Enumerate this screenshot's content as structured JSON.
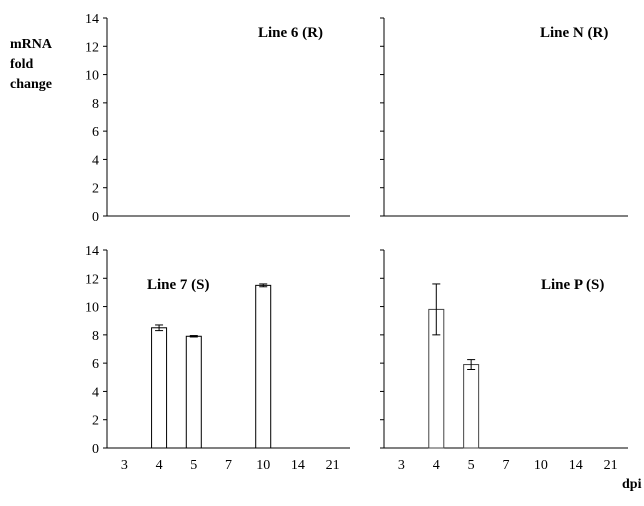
{
  "chart_data": {
    "type": "bar",
    "ylabel_lines": [
      "mRNA",
      "fold",
      "change"
    ],
    "xlabel": "dpi",
    "categories": [
      "3",
      "4",
      "5",
      "7",
      "10",
      "14",
      "21"
    ],
    "yticks": [
      "0",
      "2",
      "4",
      "6",
      "8",
      "10",
      "12",
      "14"
    ],
    "ylim": [
      0,
      14
    ],
    "grid": false,
    "panels": [
      {
        "title": "Line 6 (R)",
        "values": [
          null,
          null,
          null,
          null,
          null,
          null,
          null
        ],
        "errors": [
          null,
          null,
          null,
          null,
          null,
          null,
          null
        ]
      },
      {
        "title": "Line N (R)",
        "values": [
          null,
          null,
          null,
          null,
          null,
          null,
          null
        ],
        "errors": [
          null,
          null,
          null,
          null,
          null,
          null,
          null
        ]
      },
      {
        "title": "Line 7 (S)",
        "values": [
          null,
          8.5,
          7.9,
          null,
          11.5,
          null,
          null
        ],
        "errors": [
          null,
          0.2,
          0.05,
          null,
          0.1,
          null,
          null
        ]
      },
      {
        "title": "Line P (S)",
        "values": [
          null,
          9.8,
          5.9,
          null,
          null,
          null,
          null
        ],
        "errors": [
          null,
          1.8,
          0.35,
          null,
          null,
          null,
          null
        ]
      }
    ]
  }
}
